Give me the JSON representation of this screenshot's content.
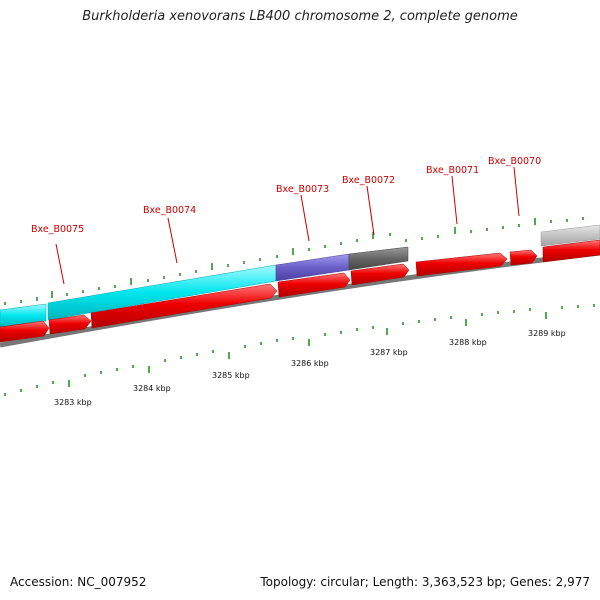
{
  "title": "Burkholderia xenovorans LB400 chromosome 2, complete genome",
  "genes": [
    {
      "name": "Bxe_B0075"
    },
    {
      "name": "Bxe_B0074"
    },
    {
      "name": "Bxe_B0073"
    },
    {
      "name": "Bxe_B0072"
    },
    {
      "name": "Bxe_B0071"
    },
    {
      "name": "Bxe_B0070"
    }
  ],
  "scale": {
    "unit": "kbp",
    "ticks": [
      "3283 kbp",
      "3284 kbp",
      "3285 kbp",
      "3286 kbp",
      "3287 kbp",
      "3288 kbp",
      "3289 kbp"
    ]
  },
  "feature_colors": {
    "cds": "#ee0000",
    "rrna": "#00e6ee",
    "trna": "#6a5fc8",
    "misc_rna": "#666666",
    "gene_outline": "#bbbbbb",
    "backbone": "#777777",
    "tick": "#1a8a1a"
  },
  "footer": {
    "accession": "Accession: NC_007952",
    "summary": "Topology: circular; Length: 3,363,523 bp; Genes: 2,977"
  }
}
